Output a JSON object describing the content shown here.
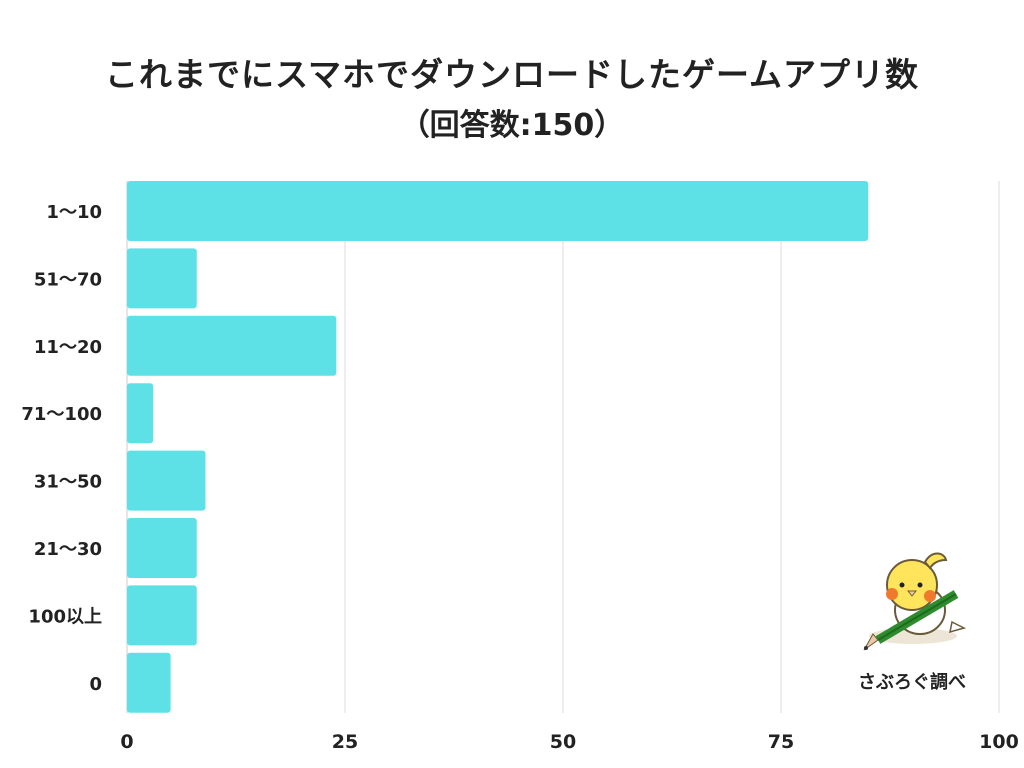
{
  "chart_data": {
    "type": "bar",
    "orientation": "horizontal",
    "title": "これまでにスマホでダウンロードしたゲームアプリ数",
    "subtitle": "（回答数:150）",
    "categories": [
      "1〜10",
      "51〜70",
      "11〜20",
      "71〜100",
      "31〜50",
      "21〜30",
      "100以上",
      "0"
    ],
    "values": [
      85,
      8,
      24,
      3,
      9,
      8,
      8,
      5
    ],
    "xlim": [
      0,
      100
    ],
    "xticks": [
      "0",
      "25",
      "50",
      "75",
      "100"
    ],
    "xtick_values": [
      0,
      25,
      50,
      75,
      100
    ],
    "grid": "vertical",
    "legend": "none",
    "bar_color": "#5EE1E6",
    "grid_color": "#DDDDDD"
  },
  "watermark": {
    "text": "さぶろぐ調べ"
  }
}
